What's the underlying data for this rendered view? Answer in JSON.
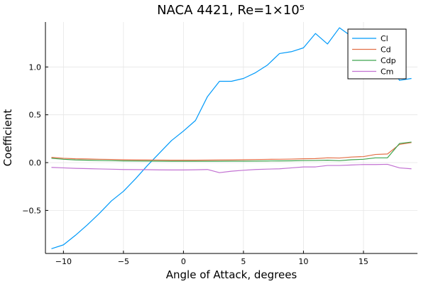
{
  "chart_data": {
    "type": "line",
    "title": "NACA 4421, Re=1×10⁵",
    "xlabel": "Angle of Attack, degrees",
    "ylabel": "Coefficient",
    "xlim": [
      -11.5,
      19.5
    ],
    "ylim": [
      -0.95,
      1.47
    ],
    "xticks": [
      -10,
      -5,
      0,
      5,
      10,
      15
    ],
    "xtick_labels": [
      "−10",
      "−5",
      "0",
      "5",
      "10",
      "15"
    ],
    "yticks": [
      -0.5,
      0.0,
      0.5,
      1.0
    ],
    "ytick_labels": [
      "−0.5",
      "0.0",
      "0.5",
      "1.0"
    ],
    "grid": true,
    "legend_position": "top-right",
    "x": [
      -11,
      -10,
      -9,
      -8,
      -7,
      -6,
      -5,
      -4,
      -3,
      -2,
      -1,
      0,
      1,
      2,
      3,
      4,
      5,
      6,
      7,
      8,
      9,
      10,
      11,
      12,
      13,
      14,
      15,
      16,
      17,
      18,
      19
    ],
    "series": [
      {
        "name": "Cl",
        "color": "#009AFA",
        "values": [
          -0.9,
          -0.86,
          -0.76,
          -0.65,
          -0.53,
          -0.4,
          -0.3,
          -0.17,
          -0.03,
          0.1,
          0.23,
          0.33,
          0.44,
          0.69,
          0.85,
          0.85,
          0.88,
          0.94,
          1.02,
          1.14,
          1.16,
          1.2,
          1.35,
          1.24,
          1.41,
          1.32,
          1.3,
          1.28,
          1.08,
          0.86,
          0.88
        ]
      },
      {
        "name": "Cd",
        "color": "#E26F46",
        "values": [
          0.055,
          0.045,
          0.04,
          0.038,
          0.035,
          0.033,
          0.03,
          0.028,
          0.027,
          0.026,
          0.025,
          0.025,
          0.025,
          0.026,
          0.027,
          0.028,
          0.03,
          0.032,
          0.034,
          0.035,
          0.037,
          0.04,
          0.042,
          0.05,
          0.048,
          0.058,
          0.063,
          0.085,
          0.09,
          0.19,
          0.21
        ]
      },
      {
        "name": "Cdp",
        "color": "#3DA44D",
        "values": [
          0.045,
          0.035,
          0.028,
          0.025,
          0.022,
          0.02,
          0.018,
          0.017,
          0.016,
          0.015,
          0.014,
          0.014,
          0.014,
          0.014,
          0.014,
          0.015,
          0.015,
          0.016,
          0.017,
          0.018,
          0.019,
          0.021,
          0.022,
          0.025,
          0.02,
          0.03,
          0.035,
          0.05,
          0.05,
          0.2,
          0.215
        ]
      },
      {
        "name": "Cm",
        "color": "#C271D2",
        "values": [
          -0.05,
          -0.055,
          -0.06,
          -0.063,
          -0.066,
          -0.069,
          -0.072,
          -0.073,
          -0.074,
          -0.076,
          -0.077,
          -0.077,
          -0.075,
          -0.072,
          -0.105,
          -0.09,
          -0.08,
          -0.072,
          -0.068,
          -0.065,
          -0.055,
          -0.045,
          -0.045,
          -0.03,
          -0.03,
          -0.025,
          -0.02,
          -0.02,
          -0.018,
          -0.055,
          -0.065
        ]
      }
    ]
  }
}
